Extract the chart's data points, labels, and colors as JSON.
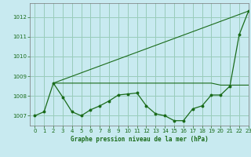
{
  "title": "Graphe pression niveau de la mer (hPa)",
  "bg_color": "#c8eaf0",
  "grid_color": "#99ccbb",
  "line_color": "#1a6b1a",
  "xlim": [
    -0.5,
    23
  ],
  "ylim": [
    1006.5,
    1012.7
  ],
  "yticks": [
    1007,
    1008,
    1009,
    1010,
    1011,
    1012
  ],
  "xticks": [
    0,
    1,
    2,
    3,
    4,
    5,
    6,
    7,
    8,
    9,
    10,
    11,
    12,
    13,
    14,
    15,
    16,
    17,
    18,
    19,
    20,
    21,
    22,
    23
  ],
  "series1_x": [
    0,
    1,
    2,
    3,
    4,
    5,
    6,
    7,
    8,
    9,
    10,
    11,
    12,
    13,
    14,
    15,
    16,
    17,
    18,
    19,
    20,
    21,
    22,
    23
  ],
  "series1_y": [
    1007.0,
    1007.2,
    1008.65,
    1007.95,
    1007.2,
    1007.0,
    1007.3,
    1007.5,
    1007.75,
    1008.05,
    1008.1,
    1008.15,
    1007.5,
    1007.1,
    1007.0,
    1006.75,
    1006.75,
    1007.35,
    1007.5,
    1008.05,
    1008.05,
    1008.5,
    1011.1,
    1012.3
  ],
  "series2_x": [
    2,
    3,
    4,
    5,
    6,
    7,
    8,
    9,
    10,
    11,
    12,
    13,
    14,
    15,
    16,
    17,
    18,
    19,
    20,
    21,
    22,
    23
  ],
  "series2_y": [
    1008.65,
    1008.65,
    1008.65,
    1008.65,
    1008.65,
    1008.65,
    1008.65,
    1008.65,
    1008.65,
    1008.65,
    1008.65,
    1008.65,
    1008.65,
    1008.65,
    1008.65,
    1008.65,
    1008.65,
    1008.65,
    1008.55,
    1008.55,
    1008.55,
    1008.55
  ],
  "series3_x": [
    2,
    23
  ],
  "series3_y": [
    1008.65,
    1012.3
  ]
}
